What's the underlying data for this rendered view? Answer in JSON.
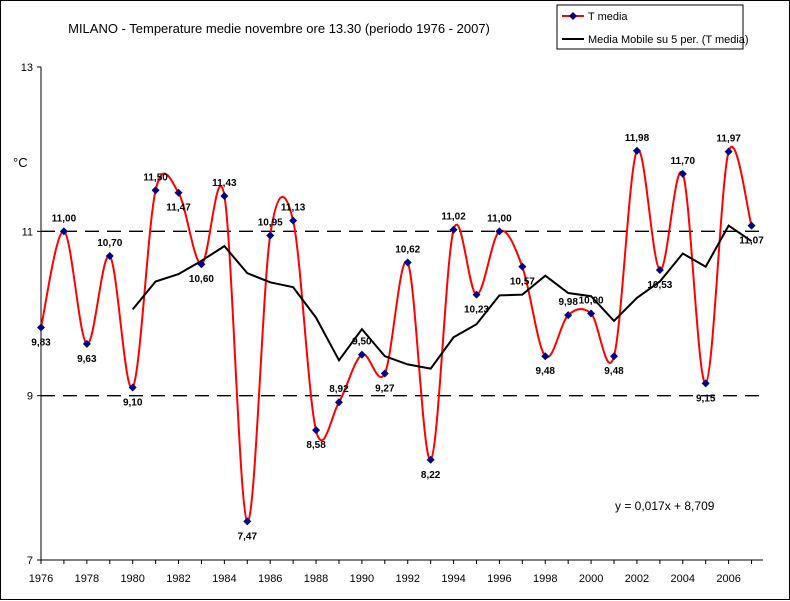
{
  "chart_data": {
    "type": "line",
    "title": "MILANO  - Temperature medie novembre ore 13.30 (periodo 1976 - 2007)",
    "ylabel": "°C",
    "xlabel": "",
    "xlim": [
      1976,
      2007.5
    ],
    "ylim": [
      7,
      13
    ],
    "y_ticks": [
      "7",
      "9",
      "11",
      "13"
    ],
    "x_ticks": [
      "1976",
      "1978",
      "1980",
      "1982",
      "1984",
      "1986",
      "1988",
      "1990",
      "1992",
      "1994",
      "1996",
      "1998",
      "2000",
      "2002",
      "2004",
      "2006"
    ],
    "reference_lines": [
      9,
      11
    ],
    "grid": false,
    "legend_position": "top-right",
    "equation": "y = 0,017x + 8,709",
    "x": [
      1976,
      1977,
      1978,
      1979,
      1980,
      1981,
      1982,
      1983,
      1984,
      1985,
      1986,
      1987,
      1988,
      1989,
      1990,
      1991,
      1992,
      1993,
      1994,
      1995,
      1996,
      1997,
      1998,
      1999,
      2000,
      2001,
      2002,
      2003,
      2004,
      2005,
      2006,
      2007
    ],
    "series": [
      {
        "name": "T media",
        "color": "#ff0000",
        "marker_color": "#000080",
        "values": [
          9.83,
          11.0,
          9.63,
          10.7,
          9.1,
          11.5,
          11.47,
          10.6,
          11.43,
          7.47,
          10.95,
          11.13,
          8.58,
          8.92,
          9.5,
          9.27,
          10.62,
          8.22,
          11.02,
          10.23,
          11.0,
          10.57,
          9.48,
          9.98,
          10.0,
          9.48,
          11.98,
          10.53,
          11.7,
          9.15,
          11.97,
          11.07
        ],
        "data_labels": [
          "9,83",
          "11,00",
          "9,63",
          "10,70",
          "9,10",
          "11,50",
          "11,47",
          "10,60",
          "11,43",
          "7,47",
          "10,95",
          "11,13",
          "8,58",
          "8,92",
          "9,50",
          "9,27",
          "10,62",
          "8,22",
          "11,02",
          "10,23",
          "11,00",
          "10,57",
          "9,48",
          "9,98",
          "10,00",
          "9,48",
          "11,98",
          "10,53",
          "11,70",
          "9,15",
          "11,97",
          "11,07"
        ]
      },
      {
        "name": "Media Mobile su 5 per. (T media)",
        "color": "#000000",
        "values": [
          null,
          null,
          null,
          null,
          10.05,
          10.39,
          10.48,
          10.64,
          10.82,
          10.49,
          10.38,
          10.32,
          9.95,
          9.43,
          9.81,
          9.48,
          9.38,
          9.33,
          9.71,
          9.87,
          10.22,
          10.23,
          10.46,
          10.25,
          10.21,
          9.91,
          10.19,
          10.39,
          10.73,
          10.57,
          11.07,
          10.88
        ]
      }
    ]
  }
}
